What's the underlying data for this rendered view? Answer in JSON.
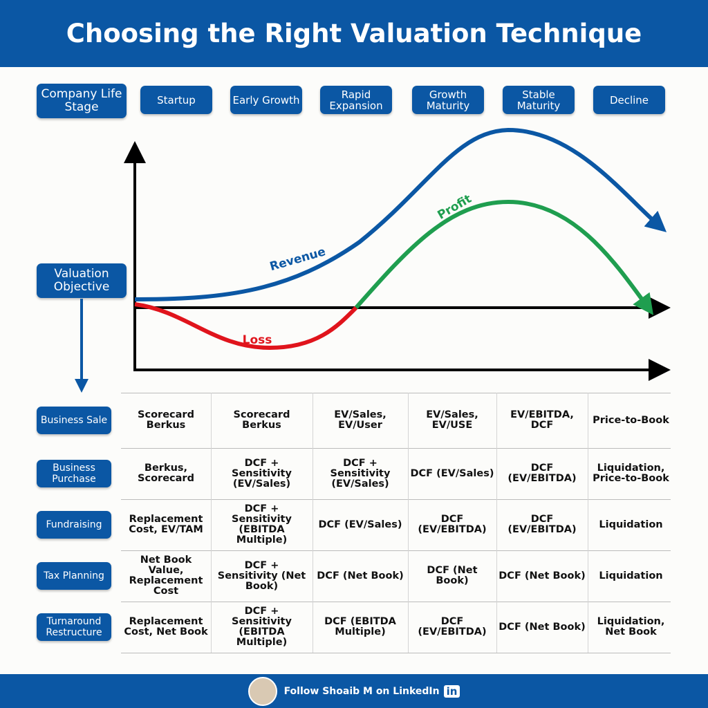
{
  "header": {
    "title": "Choosing the Right Valuation Technique"
  },
  "stage_header": {
    "label": "Company Life Stage",
    "stages": [
      "Startup",
      "Early Growth",
      "Rapid Expansion",
      "Growth Maturity",
      "Stable Maturity",
      "Decline"
    ]
  },
  "chart": {
    "objective_label": "Valuation Objective",
    "curves": [
      "Revenue",
      "Profit",
      "Loss"
    ]
  },
  "table": {
    "row_labels": [
      "Business Sale",
      "Business Purchase",
      "Fundraising",
      "Tax Planning",
      "Turnaround Restructure"
    ],
    "rows": [
      [
        "Scorecard Berkus",
        "Scorecard Berkus",
        "EV/Sales, EV/User",
        "EV/Sales, EV/USE",
        "EV/EBITDA, DCF",
        "Price-to-Book"
      ],
      [
        "Berkus, Scorecard",
        "DCF + Sensitivity (EV/Sales)",
        "DCF + Sensitivity (EV/Sales)",
        "DCF (EV/Sales)",
        "DCF (EV/EBITDA)",
        "Liquidation, Price-to-Book"
      ],
      [
        "Replacement Cost, EV/TAM",
        "DCF + Sensitivity (EBITDA Multiple)",
        "DCF (EV/Sales)",
        "DCF (EV/EBITDA)",
        "DCF (EV/EBITDA)",
        "Liquidation"
      ],
      [
        "Net Book Value, Replacement Cost",
        "DCF + Sensitivity (Net Book)",
        "DCF (Net Book)",
        "DCF (Net Book)",
        "DCF (Net Book)",
        "Liquidation"
      ],
      [
        "Replacement Cost, Net Book",
        "DCF + Sensitivity (EBITDA Multiple)",
        "DCF (EBITDA Multiple)",
        "DCF (EV/EBITDA)",
        "DCF (Net Book)",
        "Liquidation, Net Book"
      ]
    ]
  },
  "footer": {
    "text": "Follow Shoaib M on LinkedIn",
    "badge": "in"
  }
}
